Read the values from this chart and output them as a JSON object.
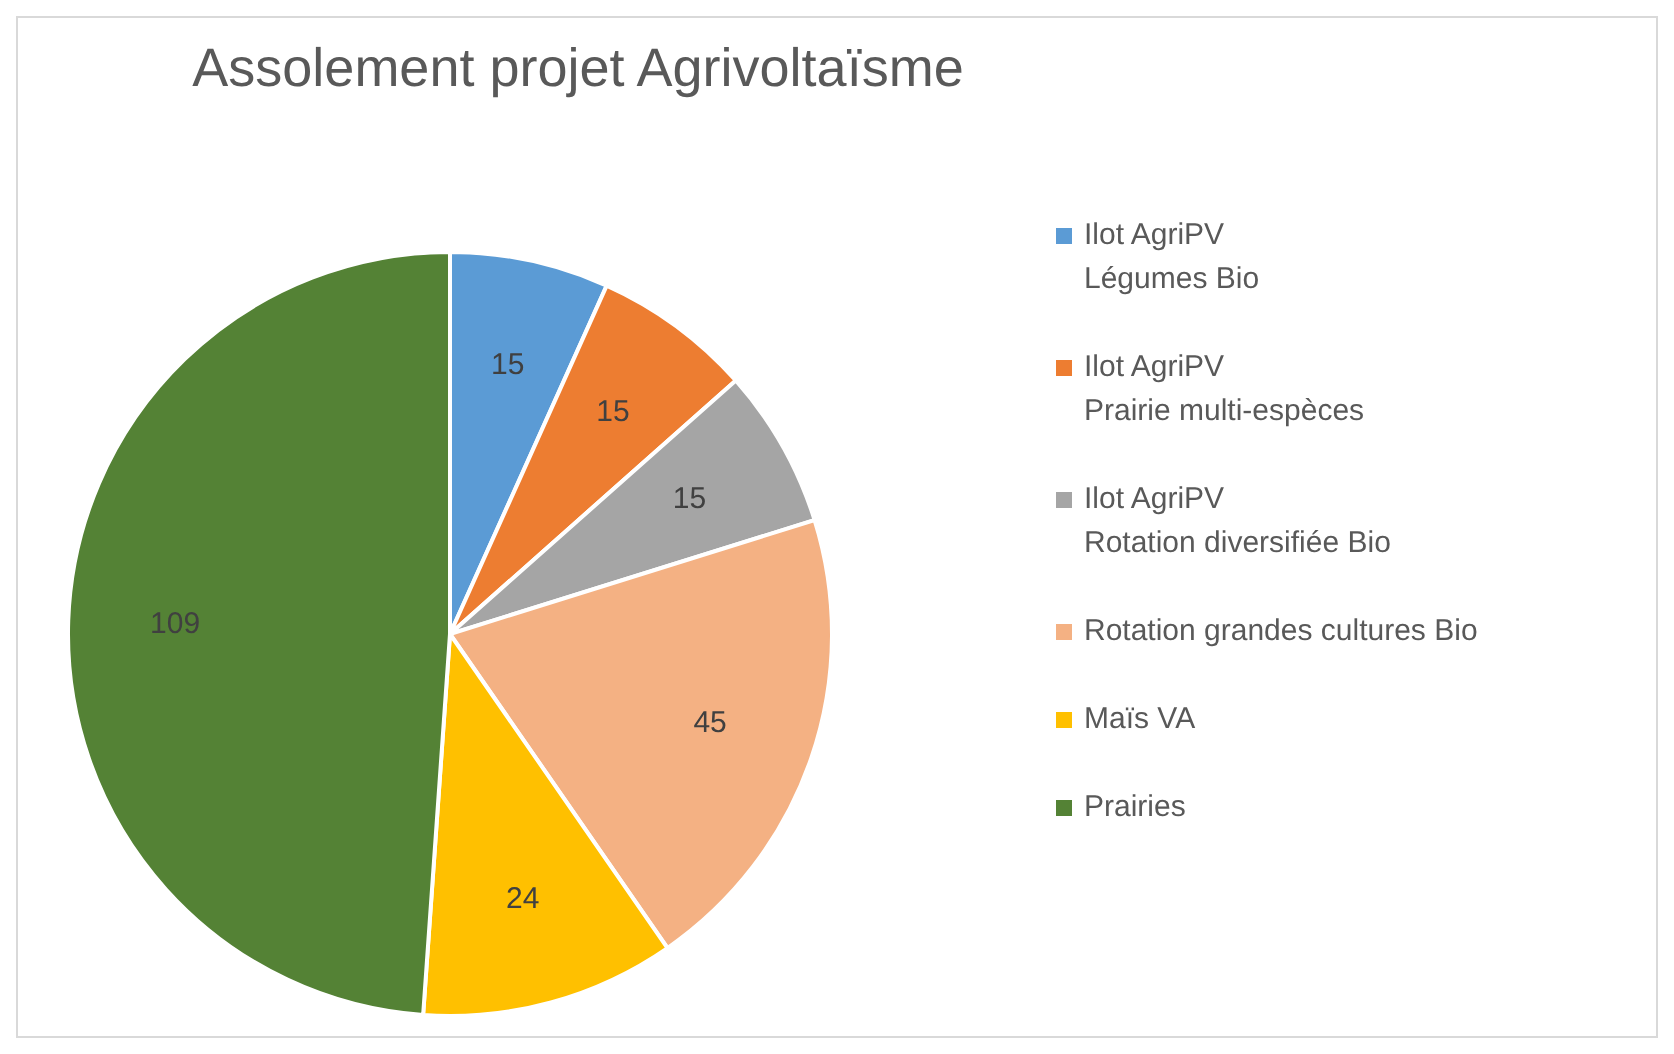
{
  "chart_data": {
    "type": "pie",
    "title": "Assolement projet Agrivoltaïsme",
    "categories": [
      "Ilot AgriPV\nLégumes Bio",
      "Ilot AgriPV\nPrairie multi-espèces",
      "Ilot AgriPV\nRotation diversifiée Bio",
      "Rotation grandes cultures Bio",
      "Maïs VA",
      "Prairies"
    ],
    "values": [
      15,
      15,
      15,
      45,
      24,
      109
    ],
    "colors": [
      "#5b9bd5",
      "#ed7d31",
      "#a5a5a5",
      "#f4b183",
      "#ffc000",
      "#548235"
    ],
    "data_labels": true,
    "legend": "right"
  }
}
